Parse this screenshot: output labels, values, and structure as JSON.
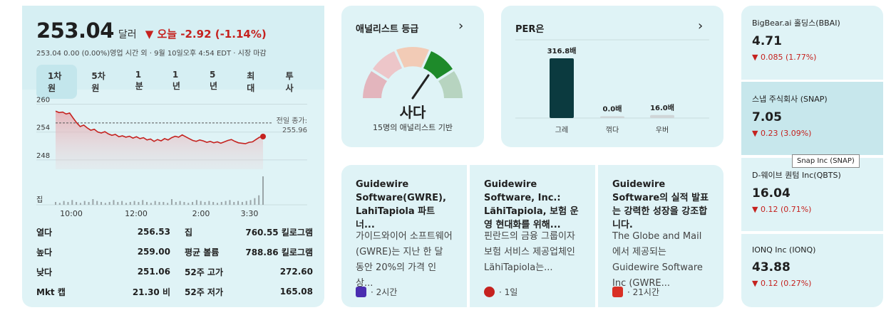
{
  "stock": {
    "price": "253.04",
    "unit": "달러",
    "change": "▼ 오늘 -2.92 (-1.14%)",
    "sub": "253.04  0.00 (0.00%)영업  시간 외 · 9월 10일오후 4:54 EDT · 시장 마감",
    "ranges": [
      "1차원",
      "5차원",
      "1분",
      "1년",
      "5년",
      "최대",
      "투사"
    ],
    "active_range": "1차원",
    "chart": {
      "y_ticks": [
        "260",
        "254",
        "248"
      ],
      "volume_label": "집",
      "x_ticks": [
        "10:00",
        "12:00",
        "2:00",
        "3:30"
      ],
      "prev_close_label": "전일 종가:",
      "prev_close_value": "255.96",
      "prev_close": 255.96,
      "ylim": [
        246,
        261
      ],
      "prices": [
        258.5,
        258.2,
        258.3,
        257.9,
        258.1,
        257.0,
        256.0,
        255.2,
        255.5,
        254.9,
        254.4,
        254.6,
        254.0,
        253.8,
        254.1,
        253.6,
        253.3,
        253.5,
        253.0,
        253.2,
        252.9,
        253.1,
        252.7,
        253.0,
        252.6,
        252.8,
        252.3,
        252.5,
        252.0,
        252.4,
        252.1,
        252.6,
        252.3,
        252.8,
        253.1,
        252.9,
        253.4,
        253.0,
        252.6,
        252.2,
        252.0,
        252.3,
        252.1,
        251.8,
        252.0,
        251.7,
        251.9,
        251.6,
        251.9,
        252.2,
        252.4,
        252.0,
        251.7,
        251.6,
        251.5,
        251.8,
        251.9,
        252.4,
        252.9,
        253.04
      ],
      "volumes": [
        3,
        2,
        4,
        3,
        5,
        3,
        2,
        4,
        3,
        6,
        4,
        3,
        2,
        3,
        5,
        3,
        4,
        2,
        3,
        4,
        3,
        5,
        3,
        2,
        4,
        3,
        3,
        2,
        6,
        3,
        4,
        3,
        2,
        3,
        5,
        4,
        3,
        4,
        3,
        2,
        3,
        4,
        5,
        3,
        4,
        3,
        4,
        5,
        7,
        10,
        30
      ]
    },
    "stats": [
      {
        "k1": "열다",
        "v1": "256.53",
        "k2": "집",
        "v2": "760.55 킬로그램"
      },
      {
        "k1": "높다",
        "v1": "259.00",
        "k2": "평균 볼륨",
        "v2": "788.86 킬로그램"
      },
      {
        "k1": "낮다",
        "v1": "251.06",
        "k2": "52주 고가",
        "v2": "272.60"
      },
      {
        "k1": "Mkt 캡",
        "v1": "21.30 비",
        "k2": "52주 저가",
        "v2": "165.08"
      }
    ]
  },
  "analyst": {
    "title": "애널리스트 등급",
    "rating": "사다",
    "sub": "15명의 애널리스트 기반"
  },
  "per": {
    "title": "PER은",
    "chart_data": {
      "type": "bar",
      "categories": [
        "그레",
        "꺾다",
        "우버"
      ],
      "values": [
        316.8,
        0.0,
        16.0
      ],
      "labels": [
        "316.8배",
        "0.0배",
        "16.0배"
      ]
    }
  },
  "news": [
    {
      "title": "Guidewire Software(GWRE), LahiTapiola 파트너...",
      "desc": "가이드와이어 소프트웨어(GWRE)는 지난 한 달 동안 20%의 가격 인상...",
      "age": "· 2시간",
      "color": "#4a2db0"
    },
    {
      "title": "Guidewire Software, Inc.: LähiTapiola, 보험 운영 현대화를 위해...",
      "desc": "핀란드의 금융 그룹이자 보험 서비스 제공업체인 LähiTapiola는...",
      "age": "· 1일",
      "color": "#c5221f"
    },
    {
      "title": "Guidewire Software의 실적 발표는 강력한 성장을 강조합니다.",
      "desc": "The Globe and Mail에서 제공되는 Guidewire Software Inc (GWRE...",
      "age": "· 21시간",
      "color": "#d93025"
    }
  ],
  "tickers": [
    {
      "name": "BigBear.ai 홀딩스(BBAI)",
      "value": "4.71",
      "change": "▼ 0.085 (1.77%)"
    },
    {
      "name": "스냅 주식회사 (SNAP)",
      "value": "7.05",
      "change": "▼ 0.23 (3.09%)"
    },
    {
      "name": "D-웨이브 퀀텀 Inc(QBTS)",
      "value": "16.04",
      "change": "▼ 0.12 (0.71%)"
    },
    {
      "name": "IONQ Inc (IONQ)",
      "value": "43.88",
      "change": "▼ 0.12 (0.27%)"
    }
  ],
  "tooltip": "Snap Inc (SNAP)",
  "colors": {
    "down": "#c5221f",
    "bar": "#0b3a3f",
    "card": "#dff3f6"
  }
}
